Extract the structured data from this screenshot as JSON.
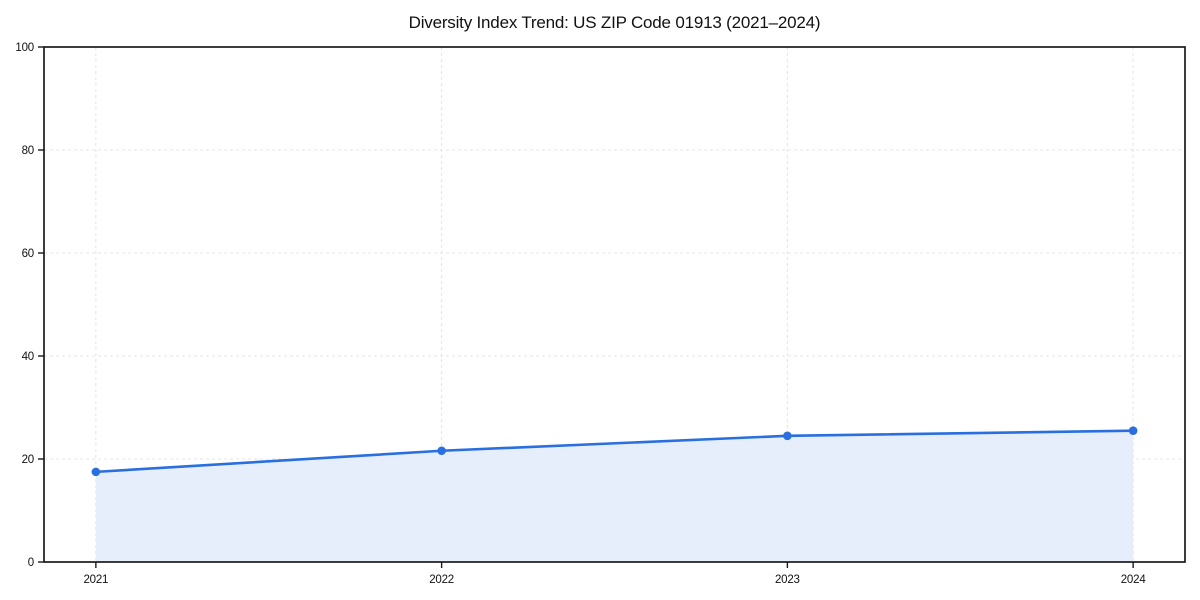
{
  "chart_data": {
    "type": "line",
    "title": "Diversity Index Trend: US ZIP Code 01913 (2021–2024)",
    "x": [
      "2021",
      "2022",
      "2023",
      "2024"
    ],
    "series": [
      {
        "name": "Diversity Index",
        "values": [
          17.5,
          21.6,
          24.5,
          25.5
        ]
      }
    ],
    "ylim": [
      0,
      100
    ],
    "yticks": [
      0,
      20,
      40,
      60,
      80,
      100
    ],
    "grid": true,
    "grid_style": "dashed",
    "area_fill": true,
    "legend": "none",
    "colors": {
      "line": "#2a6fdf",
      "marker": "#2a6fdf",
      "fill": "#e7eefb",
      "grid": "#e4e4e4",
      "spine": "#1a1a1a",
      "text": "#111111"
    }
  }
}
